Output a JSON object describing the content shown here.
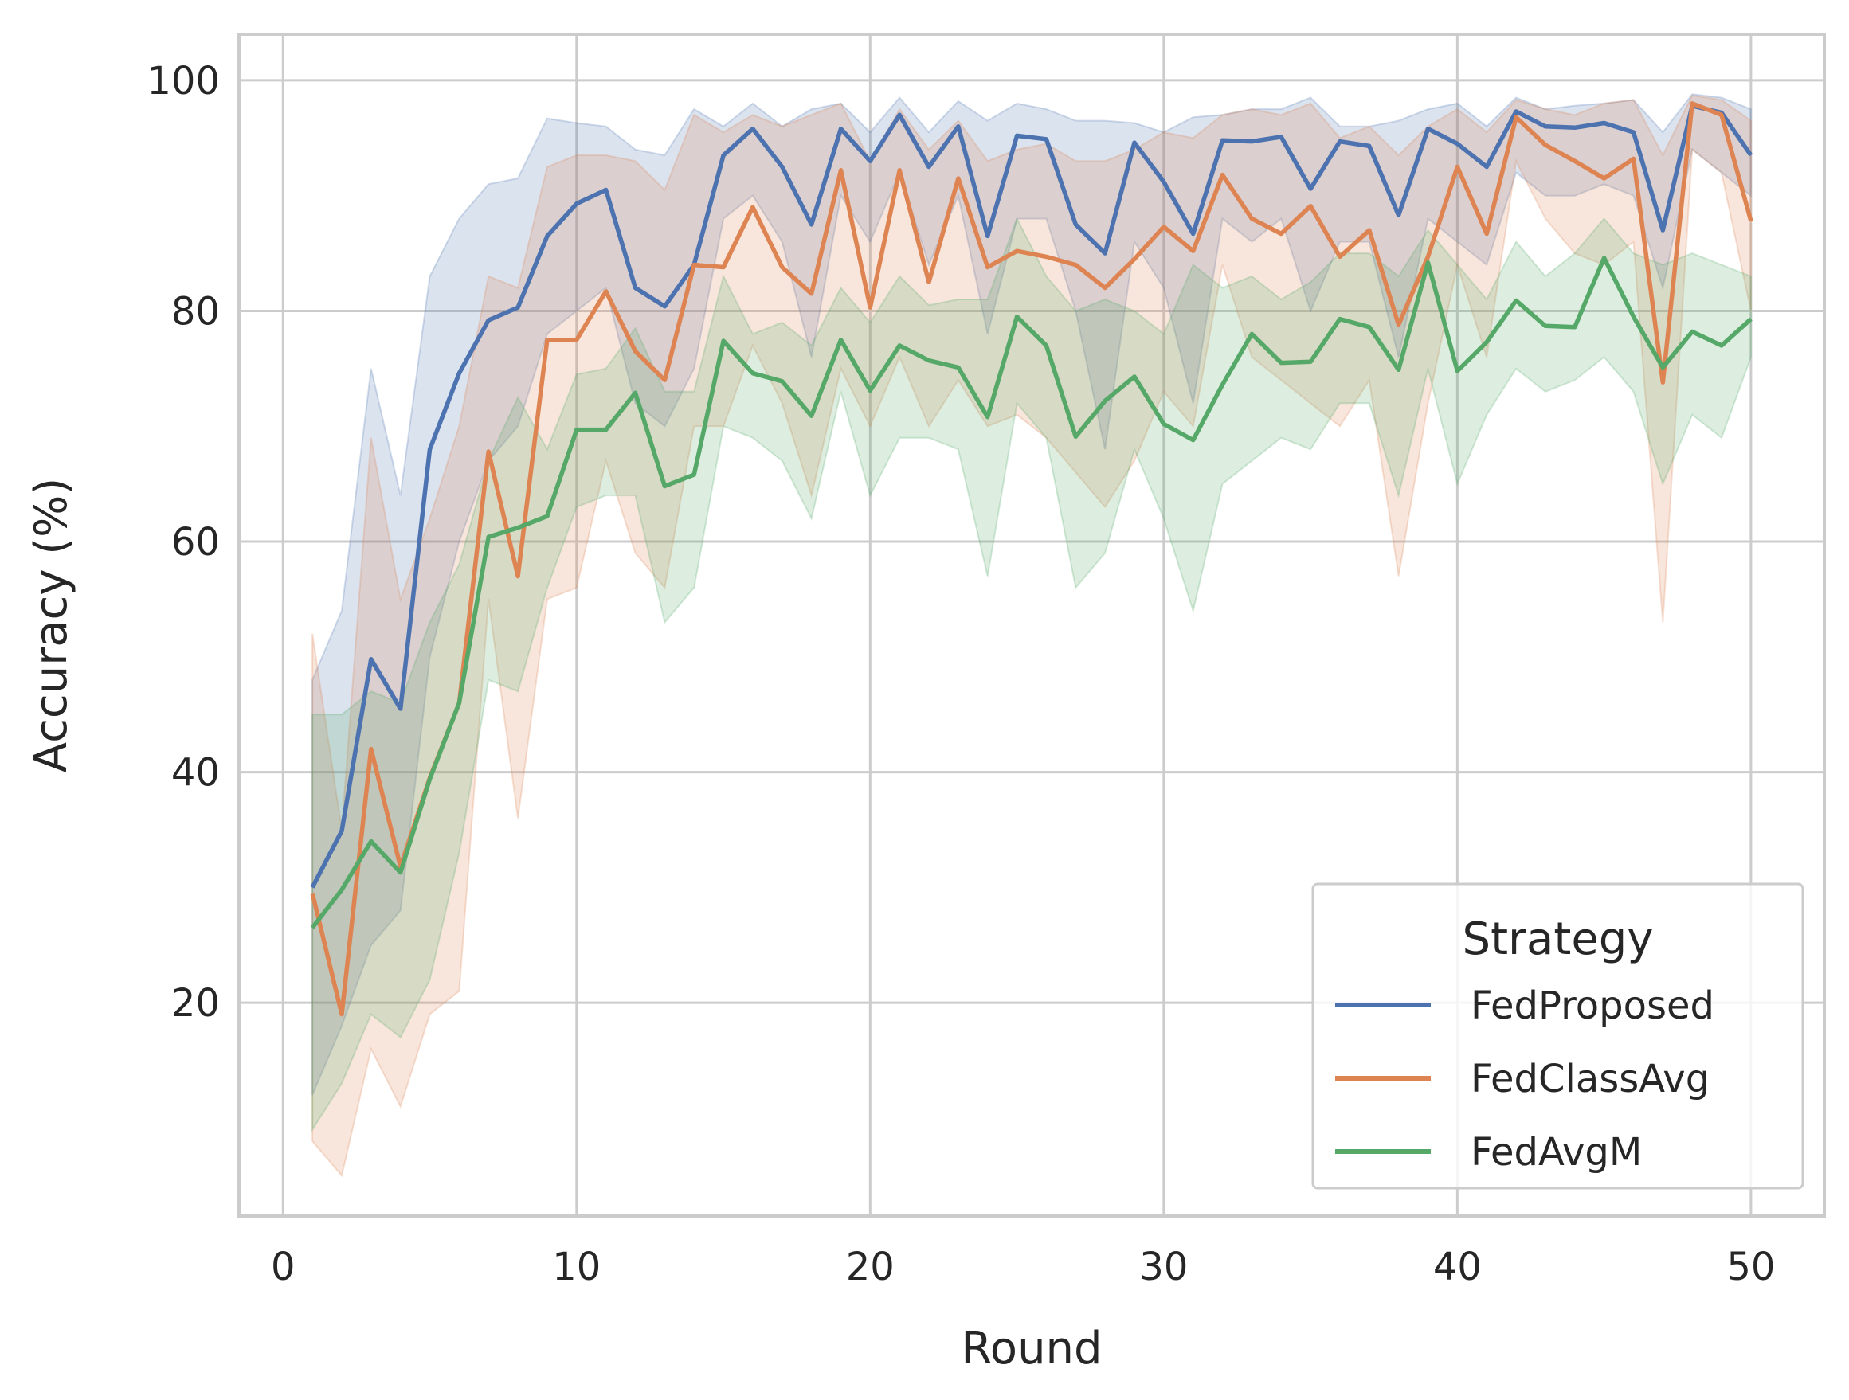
{
  "chart_data": {
    "type": "line",
    "title": "",
    "xlabel": "Round",
    "ylabel": "Accuracy (%)",
    "xlim": [
      -1.5,
      52.5
    ],
    "ylim": [
      1.5,
      104
    ],
    "xticks": [
      0,
      10,
      20,
      30,
      40,
      50
    ],
    "yticks": [
      20,
      40,
      60,
      80,
      100
    ],
    "grid": true,
    "legend": {
      "title": "Strategy",
      "placement": "lower-right"
    },
    "x": [
      1,
      2,
      3,
      4,
      5,
      6,
      7,
      8,
      9,
      10,
      11,
      12,
      13,
      14,
      15,
      16,
      17,
      18,
      19,
      20,
      21,
      22,
      23,
      24,
      25,
      26,
      27,
      28,
      29,
      30,
      31,
      32,
      33,
      34,
      35,
      36,
      37,
      38,
      39,
      40,
      41,
      42,
      43,
      44,
      45,
      46,
      47,
      48,
      49,
      50
    ],
    "series": [
      {
        "name": "FedProposed",
        "color": "#4c72b0",
        "values": [
          30,
          34.9,
          49.8,
          45.5,
          68,
          74.6,
          79.2,
          80.3,
          86.5,
          89.3,
          90.5,
          82,
          80.4,
          84,
          93.5,
          95.8,
          92.5,
          87.5,
          95.8,
          93,
          97,
          92.5,
          96,
          86.5,
          95.2,
          94.9,
          87.5,
          85,
          94.6,
          91.2,
          86.7,
          94.8,
          94.7,
          95.1,
          90.6,
          94.7,
          94.3,
          88.3,
          95.8,
          94.5,
          92.5,
          97.3,
          96,
          95.9,
          96.3,
          95.5,
          87,
          97.8,
          97.2,
          93.5
        ],
        "lower": [
          12,
          18,
          25,
          28,
          50,
          60,
          67,
          70,
          78,
          80,
          82,
          72,
          70,
          75,
          88,
          90,
          86,
          76,
          90,
          86,
          92,
          84,
          90,
          78,
          88,
          88,
          80,
          68,
          86,
          82,
          72,
          88,
          86,
          88,
          80,
          86,
          86,
          76,
          88,
          86,
          84,
          92,
          90,
          90,
          91,
          90,
          82,
          94,
          92,
          90
        ],
        "upper": [
          48,
          54,
          75,
          64,
          83,
          88,
          91,
          91.5,
          96.7,
          96.3,
          96,
          94,
          93.5,
          97.5,
          96,
          98,
          96,
          97.5,
          98,
          95.5,
          98.5,
          95.5,
          98.2,
          96.5,
          98,
          97.5,
          96.5,
          96.5,
          96.3,
          95.5,
          96.8,
          97,
          97.5,
          97.5,
          98.5,
          96,
          96,
          96.5,
          97.5,
          98,
          96,
          98.5,
          97.5,
          97.8,
          98,
          98.3,
          95.5,
          98.8,
          98.5,
          97.5
        ]
      },
      {
        "name": "FedClassAvg",
        "color": "#dd8452",
        "values": [
          29.5,
          19,
          42,
          31.8,
          39.5,
          46,
          67.8,
          57,
          77.5,
          77.5,
          81.7,
          76.5,
          74,
          84,
          83.8,
          89,
          83.8,
          81.5,
          92.2,
          80.3,
          92.2,
          82.5,
          91.5,
          83.8,
          85.2,
          84.7,
          84,
          82,
          84.5,
          87.3,
          85.2,
          91.8,
          88,
          86.7,
          89.1,
          84.7,
          87,
          78.8,
          84.7,
          92.5,
          86.7,
          96.8,
          94.4,
          93,
          91.5,
          93.2,
          73.8,
          98,
          97,
          87.8
        ],
        "lower": [
          8,
          5,
          16,
          11,
          19,
          21,
          55,
          36,
          55,
          56,
          67,
          59,
          56,
          70,
          70,
          77,
          72,
          64,
          75,
          70,
          76,
          70,
          74,
          70,
          71,
          69,
          66,
          63,
          67,
          73,
          70,
          84,
          76,
          74,
          72,
          70,
          74,
          57,
          72,
          84,
          76,
          93,
          88,
          85,
          84,
          86,
          53,
          94,
          92,
          80
        ],
        "upper": [
          52,
          35,
          69,
          55,
          62,
          70,
          83,
          82,
          92.5,
          93.5,
          93.5,
          93,
          90.5,
          97,
          95.5,
          97,
          96,
          97,
          98,
          93,
          97.5,
          94,
          96.5,
          93,
          94,
          94.5,
          93,
          93,
          94,
          95.5,
          95,
          97,
          97.5,
          97,
          98,
          95,
          96,
          93.5,
          96,
          97.5,
          95.5,
          98.3,
          97.5,
          97,
          98,
          98.3,
          93.5,
          98.7,
          98.3,
          96.5
        ]
      },
      {
        "name": "FedAvgM",
        "color": "#55a868",
        "values": [
          26.5,
          29.8,
          34,
          31.3,
          39.4,
          46,
          60.4,
          61.2,
          62.2,
          69.7,
          69.7,
          72.9,
          64.8,
          65.8,
          77.4,
          74.6,
          73.9,
          70.9,
          77.5,
          73.1,
          77,
          75.7,
          75.1,
          70.8,
          79.5,
          77,
          69.1,
          72.2,
          74.3,
          70.2,
          68.8,
          73.6,
          78,
          75.5,
          75.6,
          79.3,
          78.6,
          74.9,
          84.2,
          74.8,
          77.3,
          80.9,
          78.7,
          78.6,
          84.6,
          79.5,
          75.1,
          78.2,
          77,
          79.3
        ],
        "lower": [
          9,
          13,
          19,
          17,
          22,
          33,
          48,
          47,
          56,
          63,
          64,
          64,
          53,
          56,
          70,
          69,
          67,
          62,
          73,
          64,
          69,
          69,
          68,
          57,
          72,
          69,
          56,
          59,
          68,
          62,
          54,
          65,
          67,
          69,
          68,
          72,
          72,
          64,
          75,
          65,
          71,
          75,
          73,
          74,
          76,
          73,
          65,
          71,
          69,
          76
        ],
        "upper": [
          45,
          45,
          47,
          46,
          53,
          58,
          67,
          72.5,
          68,
          74.5,
          75,
          78.5,
          73,
          73,
          83,
          78,
          79,
          77,
          82,
          79,
          83,
          80.5,
          81,
          81,
          88,
          83,
          80,
          81,
          80,
          78,
          84,
          82,
          83,
          81,
          82.5,
          85,
          85,
          83,
          87,
          84,
          81,
          86,
          83,
          85,
          88,
          85,
          84,
          85,
          84,
          83
        ]
      }
    ]
  }
}
